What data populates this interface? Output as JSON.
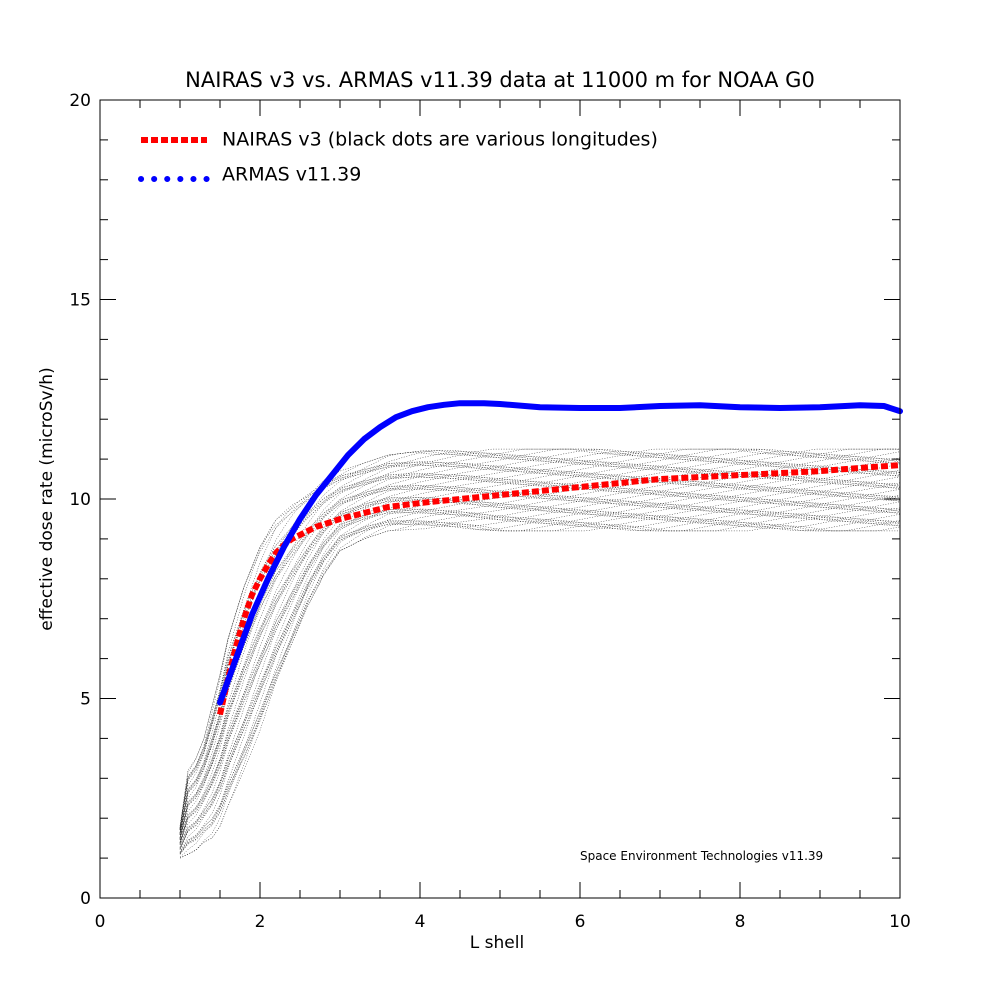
{
  "chart_data": {
    "type": "line",
    "title": "NAIRAS  v3 vs. ARMAS v11.39 data at 11000 m for NOAA G0",
    "xlabel": "L shell",
    "ylabel": "effective dose rate (microSv/h)",
    "xlim": [
      0,
      10
    ],
    "ylim": [
      0,
      20
    ],
    "x_ticks": [
      0,
      2,
      4,
      6,
      8,
      10
    ],
    "y_ticks": [
      0,
      5,
      10,
      15,
      20
    ],
    "x_minor_step": 0.5,
    "y_minor_step": 1,
    "grid": false,
    "legend_position": "top-left",
    "annotation": "Space Environment Technologies v11.39",
    "series": [
      {
        "name": "NAIRAS v3 (black dots are various longitudes)",
        "color": "#ff0000",
        "style": "dashed",
        "x": [
          1.5,
          1.6,
          1.7,
          1.8,
          1.9,
          2.0,
          2.1,
          2.2,
          2.3,
          2.4,
          2.5,
          2.7,
          3.0,
          3.3,
          3.6,
          4.0,
          4.5,
          5.0,
          5.5,
          6.0,
          6.5,
          7.0,
          7.5,
          8.0,
          8.5,
          9.0,
          9.5,
          10.0
        ],
        "y": [
          4.6,
          5.5,
          6.3,
          7.0,
          7.6,
          8.0,
          8.35,
          8.65,
          8.85,
          9.0,
          9.1,
          9.3,
          9.5,
          9.65,
          9.8,
          9.9,
          10.0,
          10.1,
          10.2,
          10.3,
          10.4,
          10.5,
          10.55,
          10.6,
          10.65,
          10.7,
          10.78,
          10.85
        ]
      },
      {
        "name": "ARMAS v11.39",
        "color": "#0000ff",
        "style": "dotted",
        "x": [
          1.5,
          1.7,
          1.9,
          2.1,
          2.3,
          2.5,
          2.7,
          2.9,
          3.1,
          3.3,
          3.5,
          3.7,
          3.9,
          4.1,
          4.3,
          4.5,
          4.8,
          5.0,
          5.5,
          6.0,
          6.5,
          7.0,
          7.5,
          8.0,
          8.5,
          9.0,
          9.5,
          9.8,
          10.0
        ],
        "y": [
          4.9,
          6.0,
          7.1,
          8.0,
          8.8,
          9.5,
          10.1,
          10.6,
          11.1,
          11.5,
          11.8,
          12.05,
          12.2,
          12.3,
          12.36,
          12.4,
          12.4,
          12.38,
          12.3,
          12.28,
          12.28,
          12.33,
          12.35,
          12.3,
          12.28,
          12.3,
          12.35,
          12.33,
          12.2
        ]
      }
    ],
    "background_dots": {
      "color": "#000000",
      "description": "various longitudes",
      "x": [
        1.0,
        1.1,
        1.2,
        1.3,
        1.4,
        1.5,
        1.6,
        1.8,
        2.0,
        2.2,
        2.4,
        2.6,
        2.8,
        3.0,
        3.3,
        3.6,
        4.0,
        4.5,
        5.0,
        6.0,
        7.0,
        8.0,
        9.0,
        10.0
      ],
      "upper": [
        1.8,
        3.2,
        3.5,
        4.0,
        4.8,
        5.6,
        6.5,
        7.8,
        8.8,
        9.5,
        9.9,
        10.2,
        10.5,
        10.7,
        10.9,
        11.1,
        11.2,
        11.25,
        11.25,
        11.25,
        11.25,
        11.25,
        11.25,
        11.25
      ],
      "lower": [
        1.0,
        1.1,
        1.2,
        1.4,
        1.5,
        1.8,
        2.3,
        3.2,
        4.2,
        5.3,
        6.3,
        7.3,
        8.1,
        8.7,
        9.0,
        9.2,
        9.25,
        9.25,
        9.2,
        9.2,
        9.2,
        9.2,
        9.2,
        9.2
      ]
    }
  }
}
